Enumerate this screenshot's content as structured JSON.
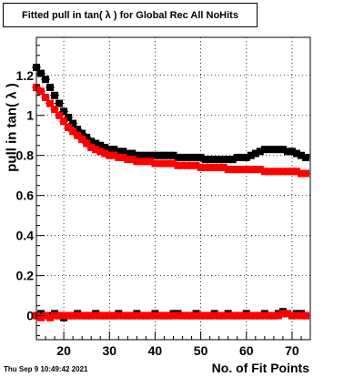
{
  "title": "Fitted pull in tan( λ ) for Global Rec All NoHits",
  "timestamp": "Thu Sep  9 10:49:42 2021",
  "chart_data": {
    "type": "scatter",
    "title": "Fitted pull in tan( λ ) for Global Rec All NoHits",
    "xlabel": "No. of Fit Points",
    "ylabel": "pull in tan( λ )",
    "xlim": [
      14,
      74
    ],
    "ylim": [
      -0.12,
      1.39
    ],
    "xticks": [
      20,
      30,
      40,
      50,
      60,
      70
    ],
    "yticks": [
      0,
      0.2,
      0.4,
      0.6,
      0.8,
      1,
      1.2
    ],
    "ytick_labels": [
      "0",
      "0.2",
      "0.4",
      "0.6",
      "0.8",
      "1",
      "1.2"
    ],
    "grid": true,
    "legend": "none",
    "series": [
      {
        "color": "#000000",
        "x": [
          14,
          15,
          16,
          17,
          18,
          19,
          20,
          21,
          22,
          23,
          24,
          25,
          26,
          27,
          28,
          29,
          30,
          31,
          32,
          33,
          34,
          35,
          36,
          37,
          38,
          39,
          40,
          41,
          42,
          43,
          44,
          45,
          46,
          47,
          48,
          49,
          50,
          51,
          52,
          53,
          54,
          55,
          56,
          57,
          58,
          59,
          60,
          61,
          62,
          63,
          64,
          65,
          66,
          67,
          68,
          69,
          70,
          71,
          72,
          73
        ],
        "y": [
          1.24,
          1.21,
          1.18,
          1.14,
          1.1,
          1.06,
          1.02,
          0.99,
          0.96,
          0.93,
          0.91,
          0.89,
          0.87,
          0.86,
          0.85,
          0.84,
          0.83,
          0.83,
          0.82,
          0.82,
          0.81,
          0.81,
          0.8,
          0.8,
          0.8,
          0.8,
          0.8,
          0.8,
          0.8,
          0.8,
          0.8,
          0.79,
          0.79,
          0.79,
          0.79,
          0.79,
          0.79,
          0.78,
          0.78,
          0.78,
          0.78,
          0.78,
          0.78,
          0.78,
          0.79,
          0.79,
          0.79,
          0.8,
          0.81,
          0.82,
          0.83,
          0.83,
          0.83,
          0.83,
          0.83,
          0.82,
          0.82,
          0.81,
          0.8,
          0.79
        ]
      },
      {
        "color": "#ff0000",
        "x": [
          14,
          15,
          16,
          17,
          18,
          19,
          20,
          21,
          22,
          23,
          24,
          25,
          26,
          27,
          28,
          29,
          30,
          31,
          32,
          33,
          34,
          35,
          36,
          37,
          38,
          39,
          40,
          41,
          42,
          43,
          44,
          45,
          46,
          47,
          48,
          49,
          50,
          51,
          52,
          53,
          54,
          55,
          56,
          57,
          58,
          59,
          60,
          61,
          62,
          63,
          64,
          65,
          66,
          67,
          68,
          69,
          70,
          71,
          72,
          73
        ],
        "y": [
          1.14,
          1.12,
          1.09,
          1.06,
          1.03,
          1.0,
          0.97,
          0.94,
          0.92,
          0.9,
          0.88,
          0.86,
          0.84,
          0.83,
          0.82,
          0.81,
          0.8,
          0.8,
          0.79,
          0.79,
          0.78,
          0.78,
          0.77,
          0.77,
          0.77,
          0.77,
          0.76,
          0.76,
          0.76,
          0.76,
          0.76,
          0.75,
          0.75,
          0.75,
          0.75,
          0.75,
          0.74,
          0.74,
          0.74,
          0.74,
          0.74,
          0.74,
          0.73,
          0.73,
          0.73,
          0.73,
          0.73,
          0.73,
          0.73,
          0.73,
          0.72,
          0.72,
          0.72,
          0.72,
          0.72,
          0.72,
          0.72,
          0.72,
          0.71,
          0.71
        ]
      },
      {
        "color": "#000000",
        "x": [
          14,
          15,
          16,
          17,
          18,
          19,
          20,
          21,
          22,
          23,
          24,
          25,
          26,
          27,
          28,
          29,
          30,
          31,
          32,
          33,
          34,
          35,
          36,
          37,
          38,
          39,
          40,
          41,
          42,
          43,
          44,
          45,
          46,
          47,
          48,
          49,
          50,
          51,
          52,
          53,
          54,
          55,
          56,
          57,
          58,
          59,
          60,
          61,
          62,
          63,
          64,
          65,
          66,
          67,
          68,
          69,
          70,
          71,
          72,
          73
        ],
        "y": [
          0.0,
          0.01,
          0.0,
          0.0,
          0.01,
          0.0,
          -0.01,
          0.0,
          0.0,
          0.01,
          0.0,
          0.0,
          0.0,
          0.01,
          0.0,
          0.0,
          0.0,
          0.0,
          0.01,
          0.0,
          0.0,
          0.0,
          0.01,
          0.0,
          0.0,
          0.0,
          0.01,
          0.0,
          0.0,
          0.0,
          0.01,
          0.01,
          0.0,
          0.0,
          0.0,
          0.01,
          0.0,
          0.0,
          0.0,
          0.01,
          0.0,
          0.0,
          0.01,
          0.0,
          0.0,
          0.0,
          0.01,
          0.0,
          0.0,
          0.0,
          0.01,
          0.0,
          0.0,
          0.01,
          0.02,
          0.01,
          0.0,
          0.01,
          0.01,
          0.0
        ]
      },
      {
        "color": "#ff0000",
        "x": [
          14,
          15,
          16,
          17,
          18,
          19,
          20,
          21,
          22,
          23,
          24,
          25,
          26,
          27,
          28,
          29,
          30,
          31,
          32,
          33,
          34,
          35,
          36,
          37,
          38,
          39,
          40,
          41,
          42,
          43,
          44,
          45,
          46,
          47,
          48,
          49,
          50,
          51,
          52,
          53,
          54,
          55,
          56,
          57,
          58,
          59,
          60,
          61,
          62,
          63,
          64,
          65,
          66,
          67,
          68,
          69,
          70,
          71,
          72,
          73
        ],
        "y": [
          0.0,
          -0.01,
          0.0,
          -0.01,
          0.0,
          0.0,
          0.0,
          0.0,
          0.0,
          0.0,
          0.0,
          0.0,
          0.0,
          0.0,
          0.0,
          0.0,
          0.0,
          0.0,
          0.0,
          0.0,
          0.0,
          0.0,
          0.0,
          0.0,
          0.0,
          0.0,
          0.0,
          0.0,
          0.0,
          0.0,
          0.0,
          0.0,
          0.0,
          0.0,
          0.0,
          0.0,
          0.0,
          0.0,
          0.0,
          0.0,
          0.0,
          0.0,
          0.0,
          0.0,
          0.0,
          0.0,
          0.0,
          0.0,
          0.0,
          0.0,
          0.0,
          0.0,
          0.0,
          0.0,
          0.01,
          0.01,
          0.0,
          0.0,
          0.0,
          0.0
        ]
      }
    ]
  }
}
